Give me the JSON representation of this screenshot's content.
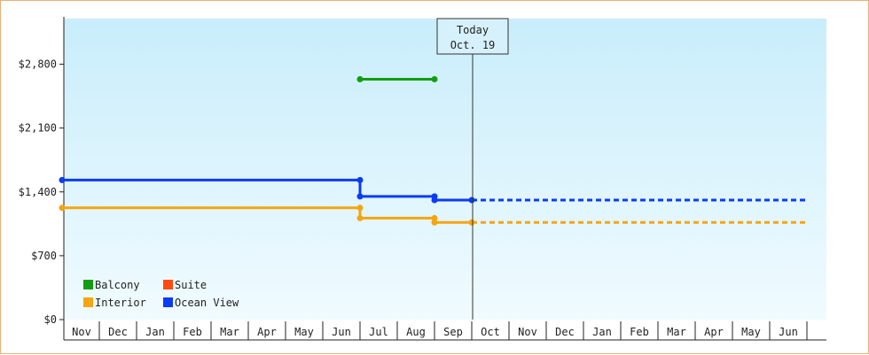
{
  "chart_data": {
    "type": "line",
    "step": true,
    "ylim": [
      0,
      3300
    ],
    "y_ticks": [
      0,
      700,
      1400,
      2100,
      2800
    ],
    "y_tick_labels": [
      "$0",
      "$700",
      "$1,400",
      "$2,100",
      "$2,800"
    ],
    "months": [
      "Nov",
      "Dec",
      "Jan",
      "Feb",
      "Mar",
      "Apr",
      "May",
      "Jun",
      "Jul",
      "Aug",
      "Sep",
      "Oct",
      "Nov",
      "Dec",
      "Jan",
      "Feb",
      "Mar",
      "Apr",
      "May",
      "Jun"
    ],
    "today": {
      "line1": "Today",
      "line2": "Oct. 19",
      "month_position": 11.0
    },
    "series": [
      {
        "name": "Balcony",
        "color": "#129d12",
        "points": [
          [
            8.0,
            2635
          ],
          [
            10.0,
            2635
          ]
        ],
        "projection": null
      },
      {
        "name": "Suite",
        "color": "#ff4a12",
        "points": [],
        "projection": null
      },
      {
        "name": "Interior",
        "color": "#f5a511",
        "points": [
          [
            0.0,
            1225
          ],
          [
            8.0,
            1225
          ],
          [
            8.0,
            1112
          ],
          [
            10.0,
            1112
          ],
          [
            10.0,
            1065
          ],
          [
            11.0,
            1065
          ]
        ],
        "projection": [
          [
            11.0,
            1065
          ],
          [
            20.0,
            1065
          ]
        ]
      },
      {
        "name": "Ocean View",
        "color": "#0b3cf5",
        "points": [
          [
            0.0,
            1530
          ],
          [
            8.0,
            1530
          ],
          [
            8.0,
            1350
          ],
          [
            10.0,
            1350
          ],
          [
            10.0,
            1310
          ],
          [
            11.0,
            1310
          ]
        ],
        "projection": [
          [
            11.0,
            1310
          ],
          [
            20.0,
            1310
          ]
        ]
      }
    ],
    "legend": [
      {
        "name": "Balcony",
        "color": "#129d12"
      },
      {
        "name": "Suite",
        "color": "#ff4a12"
      },
      {
        "name": "Interior",
        "color": "#f5a511"
      },
      {
        "name": "Ocean View",
        "color": "#0b3cf5"
      }
    ],
    "legend_position": "bottom-left",
    "grid": true
  }
}
